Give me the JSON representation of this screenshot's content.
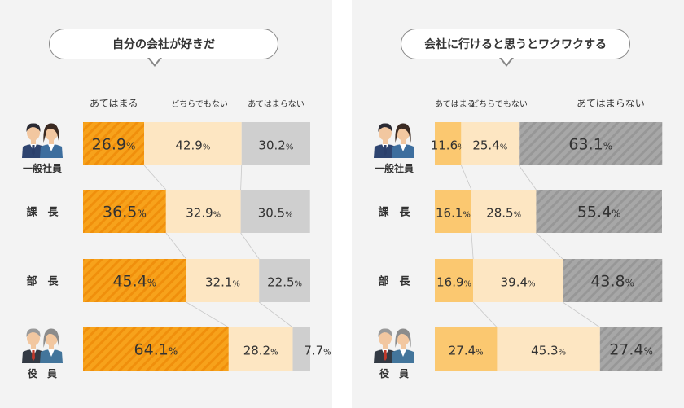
{
  "colors": {
    "orange": "#f7a21b",
    "orange_stripe": "#f08f0c",
    "light_orange": "#fbc870",
    "cream": "#fde6c2",
    "gray": "#cfcfcf",
    "dark_gray": "#a7a7a7",
    "dark_gray_stripe": "#979797",
    "text": "#333333"
  },
  "chart_data": [
    {
      "type": "bar",
      "orientation": "horizontal-stacked-100",
      "title": "自分の会社が好きだ",
      "legend": [
        "あてはまる",
        "どちらでもない",
        "あてはまらない"
      ],
      "categories": [
        "一般社員",
        "課　長",
        "部　長",
        "役　員"
      ],
      "series": [
        {
          "name": "あてはまる",
          "values": [
            26.9,
            36.5,
            45.4,
            64.1
          ]
        },
        {
          "name": "どちらでもない",
          "values": [
            42.9,
            32.9,
            32.1,
            28.2
          ]
        },
        {
          "name": "あてはまらない",
          "values": [
            30.2,
            30.5,
            22.5,
            7.7
          ]
        }
      ],
      "value_suffix": "%"
    },
    {
      "type": "bar",
      "orientation": "horizontal-stacked-100",
      "title": "会社に行けると思うとワクワクする",
      "legend": [
        "あてはまる",
        "どちらでもない",
        "あてはまらない"
      ],
      "categories": [
        "一般社員",
        "課　長",
        "部　長",
        "役　員"
      ],
      "series": [
        {
          "name": "あてはまる",
          "values": [
            11.6,
            16.1,
            16.9,
            27.4
          ]
        },
        {
          "name": "どちらでもない",
          "values": [
            25.4,
            28.5,
            39.4,
            45.3
          ]
        },
        {
          "name": "あてはまらない",
          "values": [
            63.1,
            55.4,
            43.8,
            27.4
          ]
        }
      ],
      "value_suffix": "%"
    }
  ],
  "row_icons": [
    "employee-couple-icon",
    null,
    null,
    "executive-couple-icon"
  ]
}
